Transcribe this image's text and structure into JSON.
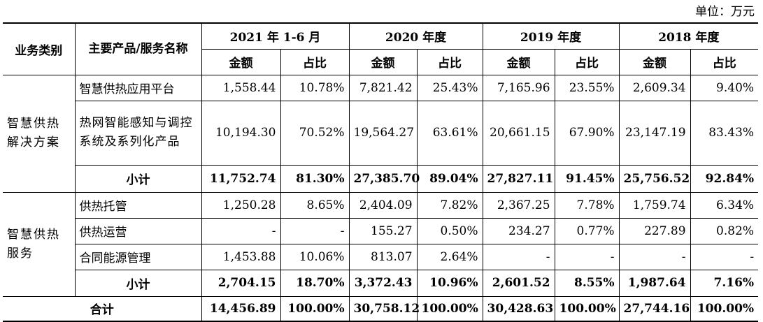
{
  "unit_label": "单位：万元",
  "headers": {
    "business_type": "业务类别",
    "product": "主要产品/服务名称",
    "periods": [
      "2021 年 1-6 月",
      "2020 年度",
      "2019 年度",
      "2018 年度"
    ],
    "amount": "金额",
    "ratio": "占比"
  },
  "groups": [
    {
      "category": "智慧供热解决方案",
      "rows": [
        {
          "product": "智慧供热应用平台",
          "values": [
            "1,558.44",
            "10.78%",
            "7,821.42",
            "25.43%",
            "7,165.96",
            "23.55%",
            "2,609.34",
            "9.40%"
          ]
        },
        {
          "product": "热网智能感知与调控系统及系列化产品",
          "values": [
            "10,194.30",
            "70.52%",
            "19,564.27",
            "63.61%",
            "20,661.15",
            "67.90%",
            "23,147.19",
            "83.43%"
          ]
        }
      ],
      "subtotal": {
        "label": "小计",
        "values": [
          "11,752.74",
          "81.30%",
          "27,385.70",
          "89.04%",
          "27,827.11",
          "91.45%",
          "25,756.52",
          "92.84%"
        ]
      }
    },
    {
      "category": "智慧供热服务",
      "rows": [
        {
          "product": "供热托管",
          "values": [
            "1,250.28",
            "8.65%",
            "2,404.09",
            "7.82%",
            "2,367.25",
            "7.78%",
            "1,759.74",
            "6.34%"
          ]
        },
        {
          "product": "供热运营",
          "values": [
            "-",
            "-",
            "155.27",
            "0.50%",
            "234.27",
            "0.77%",
            "227.89",
            "0.82%"
          ]
        },
        {
          "product": "合同能源管理",
          "values": [
            "1,453.88",
            "10.06%",
            "813.07",
            "2.64%",
            "-",
            "-",
            "-",
            "-"
          ]
        }
      ],
      "subtotal": {
        "label": "小计",
        "values": [
          "2,704.15",
          "18.70%",
          "3,372.43",
          "10.96%",
          "2,601.52",
          "8.55%",
          "1,987.64",
          "7.16%"
        ]
      }
    }
  ],
  "total": {
    "label": "合计",
    "values": [
      "14,456.89",
      "100.00%",
      "30,758.12",
      "100.00%",
      "30,428.63",
      "100.00%",
      "27,744.16",
      "100.00%"
    ]
  }
}
